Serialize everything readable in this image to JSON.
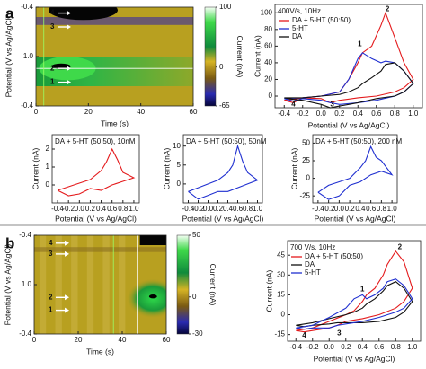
{
  "panel_labels": [
    "a",
    "b"
  ],
  "chart_data": [
    {
      "type": "heatmap",
      "xlabel": "Time (s)",
      "ylabel": "Potential (V vs Ag/AgCl)",
      "xlim": [
        0,
        60
      ],
      "xticks": [
        0,
        20,
        40,
        60
      ],
      "ylim": [
        0,
        2
      ],
      "yticks": [
        {
          "value": 0,
          "label": "-0.4"
        },
        {
          "value": 1,
          "label": "1.0"
        },
        {
          "value": 2,
          "label": "-0.4"
        }
      ],
      "clim": [
        -65,
        100
      ],
      "colorbar_ticks": [
        100,
        0,
        -65
      ],
      "colorbar_label": "Current (nA)",
      "annotations": [
        "4",
        "3",
        "2",
        "1"
      ]
    },
    {
      "type": "line",
      "title": "400V/s, 10Hz",
      "xlabel": "Potential (V vs Ag/AgCl)",
      "ylabel": "Current (nA)",
      "xlim": [
        -0.5,
        1.1
      ],
      "xticks": [
        -0.4,
        -0.2,
        {
          "value": 0,
          "label": "0.0"
        },
        0.2,
        0.4,
        0.6,
        0.8,
        {
          "value": 1,
          "label": "1.0"
        }
      ],
      "ylim": [
        -14,
        110
      ],
      "yticks": [
        0,
        20,
        40,
        60,
        80,
        100
      ],
      "legend": "top-left",
      "x": [
        -0.4,
        -0.2,
        0,
        0.2,
        0.3,
        0.4,
        0.45,
        0.55,
        0.65,
        0.7,
        0.8,
        0.9,
        1.0,
        0.9,
        0.8,
        0.6,
        0.4,
        0.2,
        0.1,
        0,
        -0.2,
        -0.3,
        -0.4
      ],
      "series": [
        {
          "name": "DA + 5-HT (50:50)",
          "color": "#e41a1c",
          "values": [
            -5,
            -2,
            0,
            5,
            20,
            40,
            52,
            60,
            85,
            100,
            70,
            40,
            20,
            10,
            5,
            0,
            -2,
            -5,
            -8,
            -3,
            -2,
            -8,
            -5
          ]
        },
        {
          "name": "5-HT",
          "color": "#1f2fd0",
          "values": [
            -3,
            -2,
            0,
            5,
            20,
            45,
            52,
            45,
            40,
            42,
            40,
            30,
            15,
            5,
            0,
            -5,
            -8,
            -10,
            -8,
            -5,
            -3,
            -6,
            -3
          ]
        },
        {
          "name": "DA",
          "color": "#111111",
          "values": [
            -2,
            -2,
            0,
            2,
            5,
            10,
            15,
            22,
            30,
            38,
            40,
            30,
            15,
            5,
            0,
            -3,
            -8,
            -12,
            -14,
            -10,
            -5,
            -4,
            -2
          ]
        }
      ],
      "annotations": [
        "1",
        "2",
        "3",
        "4"
      ]
    },
    {
      "type": "line",
      "title": "DA + 5-HT (50:50), 10nM",
      "xlabel": "Potential (V vs Ag/AgCl)",
      "ylabel": "Current (nA)",
      "xlim": [
        -0.5,
        1.1
      ],
      "xticks": [
        -0.4,
        -0.2,
        {
          "value": 0,
          "label": "0.0"
        },
        0.2,
        0.4,
        0.6,
        0.8,
        {
          "value": 1,
          "label": "1.0"
        }
      ],
      "ylim": [
        -1,
        2.8
      ],
      "yticks": [
        0,
        1,
        2
      ],
      "x": [
        -0.4,
        -0.2,
        0,
        0.2,
        0.4,
        0.5,
        0.6,
        0.7,
        0.8,
        1.0,
        0.8,
        0.6,
        0.4,
        0.2,
        0,
        -0.2,
        -0.4
      ],
      "series": [
        {
          "color": "#e41a1c",
          "values": [
            -0.3,
            -0.1,
            0.1,
            0.3,
            0.8,
            1.3,
            2.0,
            1.4,
            0.7,
            0.4,
            0.2,
            0,
            -0.3,
            -0.2,
            -0.5,
            -0.6,
            -0.3
          ]
        }
      ]
    },
    {
      "type": "line",
      "title": "DA + 5-HT (50:50), 50nM",
      "xlabel": "Potential (V vs Ag/AgCl)",
      "ylabel": "Current (nA)",
      "xlim": [
        -0.5,
        1.1
      ],
      "xticks": [
        -0.4,
        -0.2,
        {
          "value": 0,
          "label": "0.0"
        },
        0.2,
        0.4,
        0.6,
        0.8,
        {
          "value": 1,
          "label": "1.0"
        }
      ],
      "ylim": [
        -5,
        13
      ],
      "yticks": [
        0,
        5,
        10
      ],
      "x": [
        -0.4,
        -0.2,
        0,
        0.2,
        0.4,
        0.5,
        0.6,
        0.7,
        0.8,
        1.0,
        0.8,
        0.6,
        0.4,
        0.2,
        0,
        -0.2,
        -0.4
      ],
      "series": [
        {
          "color": "#1f2fd0",
          "values": [
            -2,
            -1,
            0,
            1,
            3,
            5,
            10,
            6,
            3,
            1,
            0,
            -1,
            -2,
            -2,
            -3,
            -4,
            -2
          ]
        }
      ]
    },
    {
      "type": "line",
      "title": "DA + 5-HT (50:50), 200 nM",
      "xlabel": "Potential (V vs Ag/AgCl)",
      "ylabel": "Current (nA)",
      "xlim": [
        -0.5,
        1.1
      ],
      "xticks": [
        -0.4,
        -0.2,
        {
          "value": 0,
          "label": "0.0"
        },
        0.2,
        0.4,
        0.6,
        0.8,
        {
          "value": 1,
          "label": "1.0"
        }
      ],
      "ylim": [
        -35,
        62
      ],
      "yticks": [
        -25,
        0,
        25,
        50
      ],
      "x": [
        -0.4,
        -0.2,
        0,
        0.2,
        0.4,
        0.5,
        0.6,
        0.7,
        0.8,
        1.0,
        0.8,
        0.6,
        0.4,
        0.2,
        0,
        -0.2,
        -0.4
      ],
      "series": [
        {
          "color": "#1f2fd0",
          "values": [
            -20,
            -10,
            -5,
            0,
            15,
            25,
            45,
            30,
            25,
            5,
            10,
            5,
            -5,
            -10,
            -25,
            -30,
            -20
          ]
        }
      ]
    },
    {
      "type": "heatmap",
      "xlabel": "Time (s)",
      "ylabel": "Potential (V vs Ag/AgCl)",
      "xlim": [
        0,
        60
      ],
      "xticks": [
        0,
        20,
        40,
        60
      ],
      "ylim": [
        0,
        2
      ],
      "yticks": [
        {
          "value": 0,
          "label": "-0.4"
        },
        {
          "value": 1,
          "label": "1.0"
        },
        {
          "value": 2,
          "label": "-0.4"
        }
      ],
      "clim": [
        -30,
        50
      ],
      "colorbar_ticks": [
        50,
        0,
        -30
      ],
      "colorbar_label": "Current (nA)",
      "annotations": [
        "4",
        "3",
        "2",
        "1"
      ]
    },
    {
      "type": "line",
      "title": "700 V/s, 10Hz",
      "xlabel": "Potential (V vs Ag/AgCl)",
      "ylabel": "Current (nA)",
      "xlim": [
        -0.5,
        1.1
      ],
      "xticks": [
        -0.4,
        -0.2,
        {
          "value": 0,
          "label": "0.0"
        },
        0.2,
        0.4,
        0.6,
        0.8,
        {
          "value": 1,
          "label": "1.0"
        }
      ],
      "ylim": [
        -20,
        56
      ],
      "yticks": [
        -15,
        0,
        15,
        30,
        45
      ],
      "legend": "top-left",
      "x": [
        -0.4,
        -0.2,
        0,
        0.2,
        0.3,
        0.4,
        0.45,
        0.55,
        0.65,
        0.7,
        0.8,
        0.9,
        1.0,
        0.9,
        0.8,
        0.6,
        0.4,
        0.2,
        0.1,
        0,
        -0.2,
        -0.3,
        -0.4
      ],
      "series": [
        {
          "name": "DA + 5-HT (50:50)",
          "color": "#e41a1c",
          "values": [
            -12,
            -10,
            -5,
            0,
            3,
            10,
            15,
            20,
            30,
            38,
            48,
            40,
            20,
            10,
            5,
            0,
            -3,
            -5,
            -8,
            -10,
            -12,
            -13,
            -12
          ]
        },
        {
          "name": "DA",
          "color": "#111111",
          "values": [
            -8,
            -6,
            -3,
            0,
            2,
            5,
            8,
            12,
            18,
            22,
            25,
            20,
            10,
            2,
            -2,
            -5,
            -6,
            -6,
            -6,
            -7,
            -8,
            -9,
            -8
          ]
        },
        {
          "name": "5-HT",
          "color": "#1f2fd0",
          "values": [
            -10,
            -8,
            -2,
            5,
            12,
            15,
            12,
            15,
            20,
            25,
            27,
            22,
            12,
            5,
            2,
            -2,
            -5,
            -7,
            -8,
            -10,
            -10,
            -11,
            -10
          ]
        }
      ],
      "annotations": [
        "1",
        "2",
        "3",
        "4"
      ]
    }
  ]
}
